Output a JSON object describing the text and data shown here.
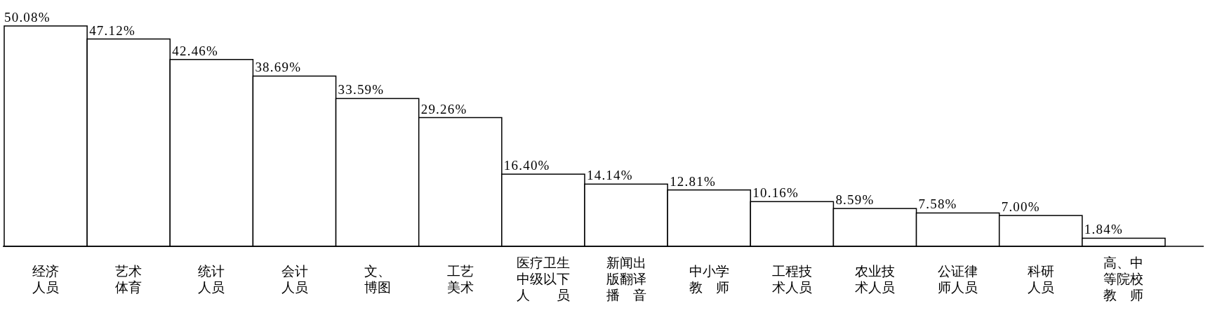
{
  "chart_data": {
    "type": "bar",
    "categories": [
      "经济人员",
      "艺术体育",
      "统计人员",
      "会计人员",
      "文、博图",
      "工艺美术",
      "医疗卫生中级以下人员",
      "新闻出版翻译播音",
      "中小学教师",
      "工程技术人员",
      "农业技术人员",
      "公证律师人员",
      "科研人员",
      "高、中等院校教师"
    ],
    "values": [
      50.08,
      47.12,
      42.46,
      38.69,
      33.59,
      29.26,
      16.4,
      14.14,
      12.81,
      10.16,
      8.59,
      7.58,
      7,
      1.84
    ],
    "color": "#ffffff",
    "value_labels": [
      "50.08%",
      "47.12%",
      "42.46%",
      "38.69%",
      "33.59%",
      "29.26%",
      "16.40%",
      "14.14%",
      "12.81%",
      "10.16%",
      "8.59%",
      "7.58%",
      "7.00%",
      "1.84%"
    ]
  }
}
